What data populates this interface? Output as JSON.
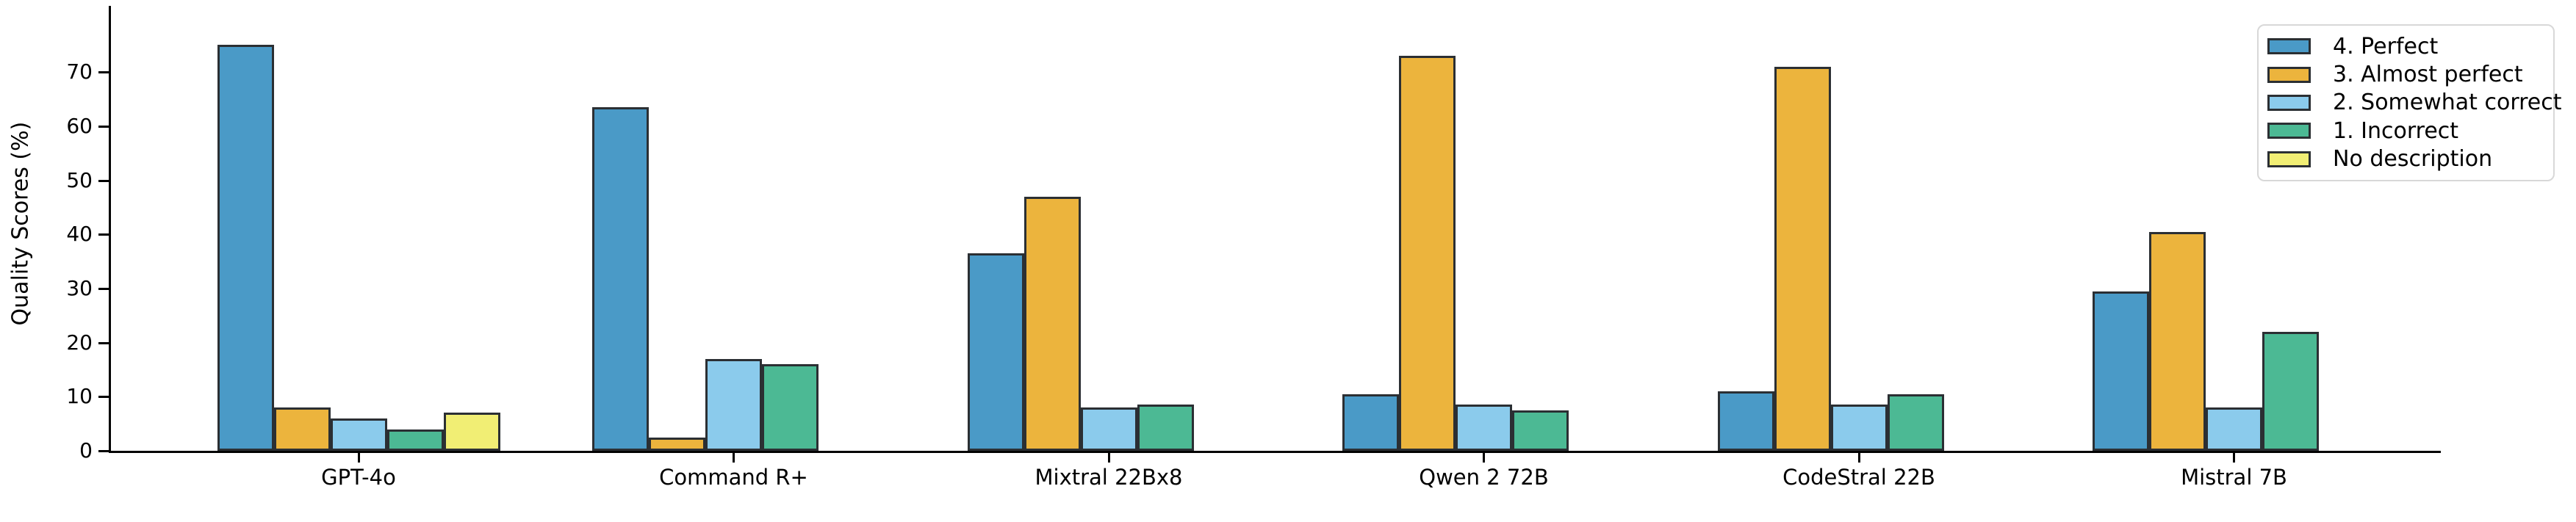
{
  "figure": {
    "background": "#ffffff",
    "text_color": "#000000"
  },
  "chart_data": {
    "type": "bar",
    "title": "",
    "xlabel": "",
    "ylabel": "Quality Scores (%)",
    "categories": [
      "GPT-4o",
      "Command R+",
      "Mixtral 22Bx8",
      "Qwen 2 72B",
      "CodeStral 22B",
      "Mistral 7B"
    ],
    "series": [
      {
        "name": "4. Perfect",
        "color": "#4a9ac7",
        "values": [
          75,
          63.5,
          36.5,
          10.5,
          11,
          29.5
        ]
      },
      {
        "name": "3. Almost perfect",
        "color": "#ecb43d",
        "values": [
          8,
          2.5,
          47,
          73,
          71,
          40.5
        ]
      },
      {
        "name": "2. Somewhat correct",
        "color": "#8bcbec",
        "values": [
          6,
          17,
          8,
          8.5,
          8.5,
          8
        ]
      },
      {
        "name": "1. Incorrect",
        "color": "#4cb994",
        "values": [
          4,
          16,
          8.5,
          7.5,
          10.5,
          22
        ]
      },
      {
        "name": "No description",
        "color": "#f1ee74",
        "values": [
          7,
          0,
          0,
          0,
          0,
          0
        ]
      }
    ],
    "yticks": [
      0,
      10,
      20,
      30,
      40,
      50,
      60,
      70
    ],
    "ylim": [
      0,
      82
    ],
    "grid": false,
    "legend_position": "upper-right",
    "bar_edge_color": "#2b2f33",
    "legend_border_color": "#d8d8d8"
  }
}
